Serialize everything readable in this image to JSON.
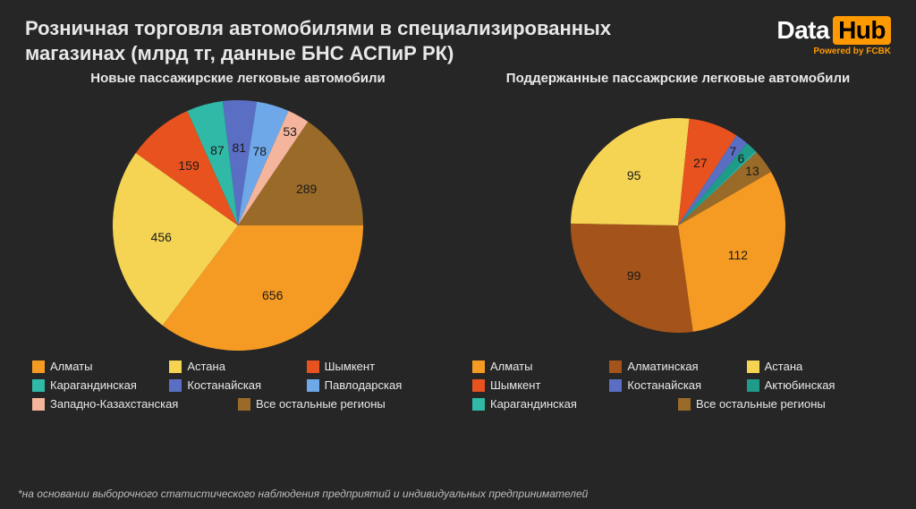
{
  "header": {
    "title": "Розничная торговля автомобилями в специализированных магазинах (млрд тг, данные БНС АСПиР РК)",
    "logo_data": "Data",
    "logo_hub": "Hub",
    "powered": "Powered by FCBK"
  },
  "background_color": "#262626",
  "chart_left": {
    "title": "Новые пассажирские легковые автомобили",
    "type": "pie",
    "radius": 140,
    "start_angle_deg": 90,
    "slices": [
      {
        "label": "Алматы",
        "value": 656,
        "color": "#f59b23"
      },
      {
        "label": "Астана",
        "value": 456,
        "color": "#f5d454"
      },
      {
        "label": "Шымкент",
        "value": 159,
        "color": "#e8521e"
      },
      {
        "label": "Карагандинская",
        "value": 87,
        "color": "#2fb9a6"
      },
      {
        "label": "Костанайская",
        "value": 81,
        "color": "#5a6fc4"
      },
      {
        "label": "Павлодарская",
        "value": 78,
        "color": "#6fa8e8"
      },
      {
        "label": "Западно-Казахстанская",
        "value": 53,
        "color": "#f5b59c"
      },
      {
        "label": "Все остальные регионы",
        "value": 289,
        "color": "#9a6a28"
      }
    ],
    "legend_layout": [
      3,
      3,
      2
    ]
  },
  "chart_right": {
    "title": "Поддержанные пассажрские легковые автомобили",
    "type": "pie",
    "radius": 120,
    "start_angle_deg": 60,
    "slices": [
      {
        "label": "Алматы",
        "value": 112,
        "color": "#f59b23"
      },
      {
        "label": "Алматинская",
        "value": 99,
        "color": "#a4531a"
      },
      {
        "label": "Астана",
        "value": 95,
        "color": "#f5d454"
      },
      {
        "label": "Шымкент",
        "value": 27,
        "color": "#e8521e"
      },
      {
        "label": "Костанайская",
        "value": 7,
        "color": "#5a6fc4"
      },
      {
        "label": "Актюбинская",
        "value": 6,
        "color": "#1f9b89"
      },
      {
        "label": "Карагандинская",
        "value": 1,
        "color": "#2fb9a6",
        "hide_value": true
      },
      {
        "label": "Все остальные регионы",
        "value": 13,
        "color": "#9a6a28"
      }
    ],
    "legend_layout": [
      3,
      3,
      2
    ]
  },
  "footnote": "*на основании выборочного статистического наблюдения предприятий и  индивидуальных предпринимателей",
  "style": {
    "title_fontsize": 22,
    "chart_title_fontsize": 15,
    "legend_fontsize": 13,
    "slice_label_fontsize": 14,
    "slice_label_color": "#1a1a1a",
    "text_color": "#e8e8e8",
    "logo_accent": "#ff9900"
  }
}
